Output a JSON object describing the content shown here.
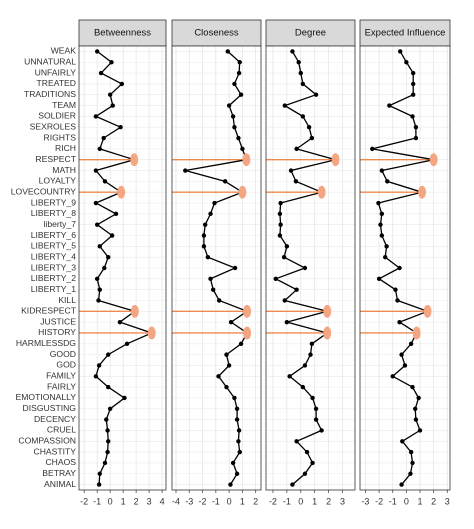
{
  "chart_data": [
    {
      "type": "line",
      "title": "Betweenness",
      "categories": [
        "WEAK",
        "UNNATURAL",
        "UNFAIRLY",
        "TREATED",
        "TRADITIONS",
        "TEAM",
        "SOLDIER",
        "SEXROLES",
        "RIGHTS",
        "RICH",
        "RESPECT",
        "MATH",
        "LOYALTY",
        "LOVECOUNTRY",
        "LIBERTY_9",
        "LIBERTY_8",
        "liberty_7",
        "LIBERTY_6",
        "LIBERTY_5",
        "LIBERTY_4",
        "LIBERTY_3",
        "LIBERTY_2",
        "LIBERTY_1",
        "KILL",
        "KIDRESPECT",
        "JUSTICE",
        "HISTORY",
        "HARMLESSDG",
        "GOOD",
        "GOD",
        "FAMILY",
        "FAIRLY",
        "EMOTIONALLY",
        "DISGUSTING",
        "DECENCY",
        "CRUEL",
        "COMPASSION",
        "CHASTITY",
        "CHAOS",
        "BETRAY",
        "ANIMAL"
      ],
      "values": [
        -1,
        0.1,
        -0.7,
        0.9,
        0,
        0.2,
        -1.1,
        0.8,
        -0.5,
        -0.8,
        1.85,
        -1.1,
        -0.4,
        0.85,
        -1.1,
        0.45,
        -1,
        0.15,
        -0.8,
        -0.15,
        -0.45,
        -1,
        -0.8,
        -0.9,
        1.9,
        0.75,
        3.2,
        1.3,
        -0.15,
        -0.85,
        -1.1,
        -0.15,
        1.1,
        0,
        -0.3,
        -0.2,
        -0.15,
        -0.2,
        -0.4,
        -0.8,
        -0.85
      ],
      "xlim": [
        -2.4,
        4.3
      ],
      "xticks": [
        -2,
        -1,
        0,
        1,
        2,
        3,
        4
      ],
      "color": "#000000",
      "highlight_color": "#f4a582",
      "highlighted": [
        "RESPECT",
        "LOVECOUNTRY",
        "KIDRESPECT",
        "HISTORY"
      ],
      "grid": true
    },
    {
      "type": "line",
      "title": "Closeness",
      "values": [
        -0.1,
        0.8,
        0.75,
        0.4,
        0.9,
        0,
        0.3,
        0.4,
        0.7,
        1.0,
        1.3,
        -3.3,
        -0.3,
        1.0,
        -1.1,
        -1.4,
        -1.8,
        -1.9,
        -1.9,
        -1.6,
        0.45,
        -1.4,
        -1.2,
        -0.75,
        1.35,
        0.15,
        1.35,
        0.9,
        -0.2,
        0,
        -0.8,
        -0.2,
        0.4,
        0.6,
        0.6,
        0.75,
        0.7,
        0.8,
        0.3,
        0.6,
        0.1
      ],
      "xlim": [
        -4.3,
        2.4
      ],
      "xticks": [
        -4,
        -3,
        -2,
        -1,
        0,
        1,
        2
      ],
      "color": "#000000",
      "highlight_color": "#f4a582",
      "highlighted": [
        "RESPECT",
        "LOVECOUNTRY",
        "KIDRESPECT",
        "HISTORY"
      ],
      "grid": true
    },
    {
      "type": "line",
      "title": "Degree",
      "values": [
        -0.6,
        -0.15,
        0,
        0.15,
        1.1,
        -1.15,
        0.15,
        0.6,
        0.8,
        -0.3,
        2.5,
        -0.7,
        -0.35,
        1.5,
        -1.45,
        -1.5,
        -1.45,
        -1.5,
        -1,
        -1.2,
        0.3,
        -1.8,
        -0.3,
        -1.15,
        1.9,
        -1,
        1.9,
        0.8,
        0.7,
        0.3,
        -0.8,
        0.15,
        0.85,
        1.1,
        1.1,
        1.5,
        -0.3,
        0.45,
        0.85,
        0.3,
        -0.6
      ],
      "xlim": [
        -2.5,
        3.9
      ],
      "xticks": [
        -2,
        -1,
        0,
        1,
        2,
        3
      ],
      "color": "#000000",
      "highlight_color": "#f4a582",
      "highlighted": [
        "RESPECT",
        "LOVECOUNTRY",
        "KIDRESPECT",
        "HISTORY"
      ],
      "grid": true
    },
    {
      "type": "line",
      "title": "Expected Influence",
      "values": [
        -0.45,
        0,
        0.5,
        0.5,
        0.5,
        -1.25,
        0.45,
        0.7,
        0.7,
        -2.5,
        2.0,
        -1.8,
        -1.4,
        1.15,
        -2.05,
        -1.8,
        -1.9,
        -1.8,
        -1.45,
        -1.55,
        -0.5,
        -2,
        -0.8,
        -0.65,
        1.55,
        -0.5,
        0.75,
        0.35,
        -0.35,
        -0.1,
        -1,
        0.45,
        0.9,
        0.65,
        0.7,
        1,
        -0.3,
        0.35,
        0.45,
        0.3,
        -0.35
      ],
      "xlim": [
        -3.4,
        3.2
      ],
      "xticks": [
        -3,
        -2,
        -1,
        0,
        1,
        2,
        3
      ],
      "color": "#000000",
      "highlight_color": "#f4a582",
      "highlighted": [
        "RESPECT",
        "LOVECOUNTRY",
        "KIDRESPECT",
        "HISTORY"
      ],
      "grid": true
    }
  ]
}
